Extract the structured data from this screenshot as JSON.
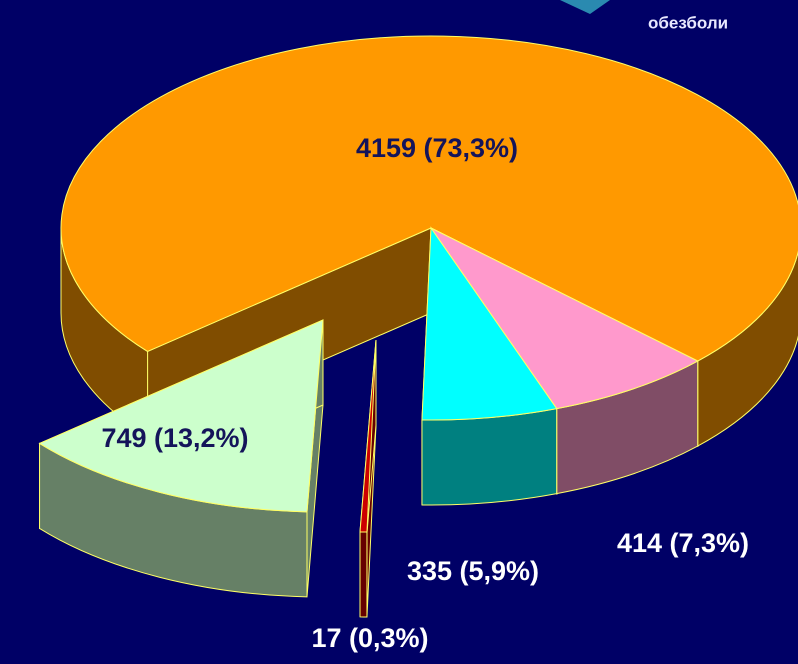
{
  "chart_data": {
    "type": "pie",
    "categories": [
      null,
      null,
      null,
      null,
      null
    ],
    "values": [
      4159,
      414,
      335,
      17,
      749
    ],
    "value_labels": [
      "4159 (73,3%)",
      "414 (7,3%)",
      "335 (5,9%)",
      "17 (0,3%)",
      "749 (13,2%)"
    ],
    "colors": [
      "#ff9900",
      "#ff99cc",
      "#00ffff",
      "#cc0000",
      "#ccffcc"
    ],
    "annotations": [
      "обезболи"
    ]
  }
}
